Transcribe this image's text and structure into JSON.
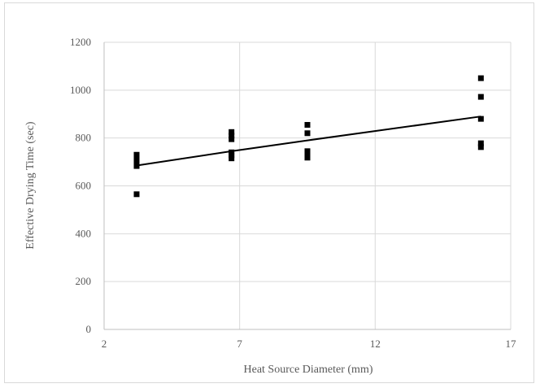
{
  "chart_data": {
    "type": "scatter",
    "title": "",
    "xlabel": "Heat Source Diameter (mm)",
    "ylabel": "Effective Drying Time (sec)",
    "xlim": [
      2,
      17
    ],
    "ylim": [
      0,
      1200
    ],
    "xticks": [
      2,
      7,
      12,
      17
    ],
    "yticks": [
      0,
      200,
      400,
      600,
      800,
      1000,
      1200
    ],
    "grid": true,
    "legend": "none",
    "series": [
      {
        "marker": "square",
        "color": "#000000",
        "points": [
          {
            "x": 3.2,
            "y": 730
          },
          {
            "x": 3.2,
            "y": 710
          },
          {
            "x": 3.2,
            "y": 695
          },
          {
            "x": 3.2,
            "y": 683
          },
          {
            "x": 3.2,
            "y": 565
          },
          {
            "x": 6.7,
            "y": 825
          },
          {
            "x": 6.7,
            "y": 810
          },
          {
            "x": 6.7,
            "y": 795
          },
          {
            "x": 6.7,
            "y": 740
          },
          {
            "x": 6.7,
            "y": 728
          },
          {
            "x": 6.7,
            "y": 715
          },
          {
            "x": 9.5,
            "y": 855
          },
          {
            "x": 9.5,
            "y": 820
          },
          {
            "x": 9.5,
            "y": 745
          },
          {
            "x": 9.5,
            "y": 730
          },
          {
            "x": 9.5,
            "y": 718
          },
          {
            "x": 15.9,
            "y": 1050
          },
          {
            "x": 15.9,
            "y": 972
          },
          {
            "x": 15.9,
            "y": 880
          },
          {
            "x": 15.9,
            "y": 778
          },
          {
            "x": 15.9,
            "y": 762
          }
        ]
      }
    ],
    "trendline": {
      "color": "#000000",
      "points": [
        {
          "x": 3.2,
          "y": 685
        },
        {
          "x": 6.7,
          "y": 745
        },
        {
          "x": 9.5,
          "y": 790
        },
        {
          "x": 15.9,
          "y": 890
        }
      ]
    }
  }
}
